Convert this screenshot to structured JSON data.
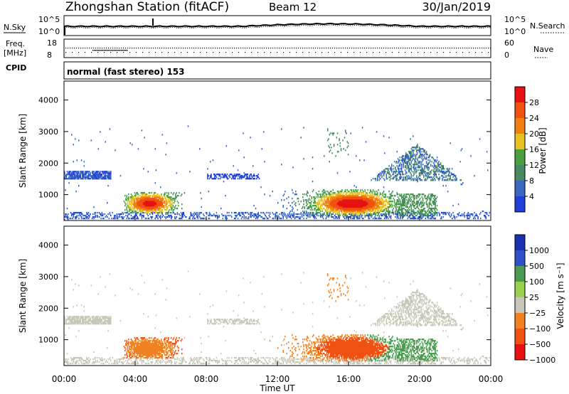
{
  "header": {
    "station": "Zhongshan Station (fitACF)",
    "beam": "Beam 12",
    "date": "30/Jan/2019"
  },
  "noise_panel": {
    "left_label": "N.Sky",
    "left_ticks": [
      "10^5",
      "10^0"
    ],
    "right_ticks": [
      "10^5",
      "10^0"
    ],
    "right_label": "N.Search"
  },
  "freq_panel": {
    "left_label_1": "Freq.",
    "left_label_2": "[MHz]",
    "left_ticks": [
      "18",
      "8"
    ],
    "right_ticks": [
      "60",
      "0"
    ],
    "right_label": "Nave"
  },
  "cpid": {
    "label": "CPID",
    "text": "normal (fast stereo) 153"
  },
  "colors": {
    "power": [
      "#2040d8",
      "#3a68c0",
      "#4a8a60",
      "#4aa040",
      "#e8c020",
      "#f08010",
      "#f05010",
      "#e81010"
    ],
    "velocity": [
      "#e81010",
      "#f05010",
      "#f08020",
      "#c8c8b8",
      "#9ad050",
      "#4a9a50",
      "#3050c8",
      "#1a30b0"
    ]
  },
  "chart_data": [
    {
      "type": "heatmap",
      "title": "Power",
      "ylabel": "Slant Range [km]",
      "xlabel": "Time UT",
      "x_ticks": [
        "00:00",
        "04:00",
        "08:00",
        "12:00",
        "16:00",
        "20:00",
        "00:00"
      ],
      "y_ticks": [
        "1000",
        "2000",
        "3000",
        "4000"
      ],
      "ylim": [
        180,
        4600
      ],
      "xlim_hours": [
        0,
        24
      ],
      "colorbar": {
        "label": "Power [dB]",
        "ticks": [
          "4",
          "8",
          "12",
          "16",
          "20",
          "24",
          "28"
        ],
        "range": [
          0,
          32
        ]
      }
    },
    {
      "type": "heatmap",
      "title": "Velocity",
      "ylabel": "Slant Range [km]",
      "xlabel": "Time UT",
      "x_ticks": [
        "00:00",
        "04:00",
        "08:00",
        "12:00",
        "16:00",
        "20:00",
        "00:00"
      ],
      "y_ticks": [
        "1000",
        "2000",
        "3000",
        "4000"
      ],
      "ylim": [
        180,
        4600
      ],
      "xlim_hours": [
        0,
        24
      ],
      "colorbar": {
        "label": "Velocity [m s⁻¹]",
        "ticks": [
          "1000",
          "500",
          "100",
          "25",
          "−25",
          "−100",
          "−500",
          "−1000"
        ]
      }
    }
  ]
}
